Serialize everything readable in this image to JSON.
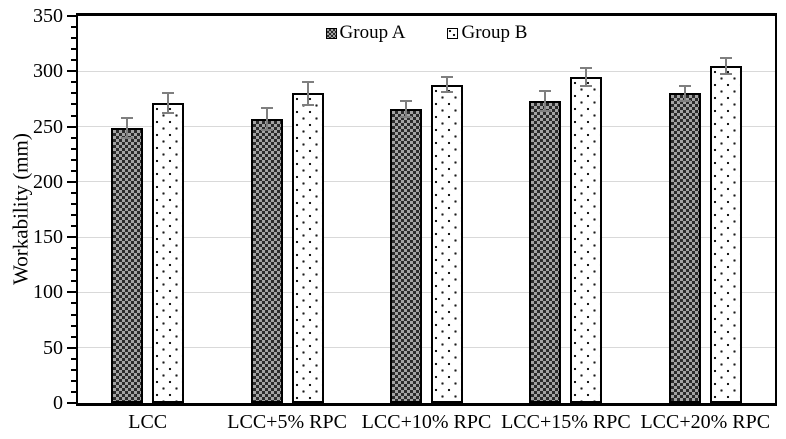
{
  "chart_data": {
    "type": "bar",
    "title": "",
    "categories": [
      "LCC",
      "LCC+5% RPC",
      "LCC+10% RPC",
      "LCC+15% RPC",
      "LCC+20% RPC"
    ],
    "series": [
      {
        "name": "Group A",
        "pattern": "checkerboard",
        "values": [
          249,
          257,
          266,
          273,
          280
        ],
        "errors": [
          10,
          11,
          8,
          10,
          8
        ]
      },
      {
        "name": "Group B",
        "pattern": "dots",
        "values": [
          271,
          280,
          288,
          295,
          305
        ],
        "errors": [
          10,
          11,
          8,
          9,
          8
        ]
      }
    ],
    "xlabel": "",
    "ylabel": "Workability (mm)",
    "ylim": [
      0,
      350
    ],
    "ytick_step": 50,
    "yminor_step": 10,
    "grid": "horizontal-major",
    "legend_position": "top-center-inside",
    "colors": {
      "axis": "#000000",
      "bar_border": "#000000",
      "gridline": "#d9d9d9",
      "error_bar": "#7f7f7f",
      "background": "#ffffff",
      "checker_dark": "#2b2b2b",
      "checker_light": "#a3a3a3",
      "dot_color": "#1a1a1a",
      "dot_background": "#ffffff"
    },
    "y_tick_labels": [
      "0",
      "50",
      "100",
      "150",
      "200",
      "250",
      "300",
      "350"
    ]
  }
}
